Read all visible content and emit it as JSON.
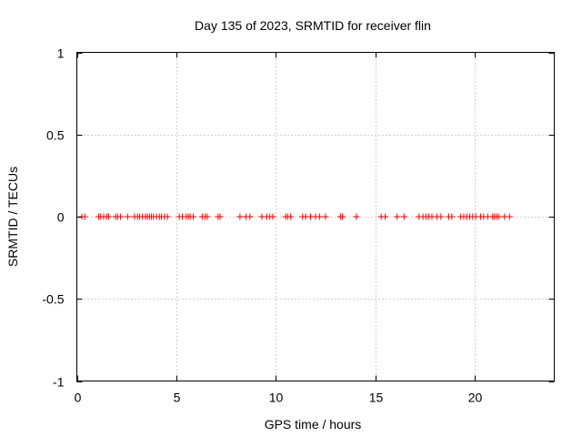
{
  "chart_data": {
    "type": "scatter",
    "title": "Day 135 of 2023, SRMTID for receiver flin",
    "xlabel": "GPS time / hours",
    "ylabel": "SRMTID / TECUs",
    "xlim": [
      0,
      24
    ],
    "ylim": [
      -1,
      1
    ],
    "xticks": [
      0,
      5,
      10,
      15,
      20
    ],
    "xtick_labels": [
      "0",
      "5",
      "10",
      "15",
      "20"
    ],
    "yticks": [
      1,
      0.5,
      0,
      -0.5,
      -1
    ],
    "ytick_labels": [
      "1",
      "0.5",
      "0",
      "-0.5",
      "-1"
    ],
    "grid": true,
    "series": [
      {
        "name": "SRMTID",
        "color": "#ff0000",
        "marker": "plus",
        "y_value": 0,
        "x": [
          0.25,
          0.4,
          1.1,
          1.2,
          1.35,
          1.5,
          1.6,
          1.95,
          2.05,
          2.2,
          2.55,
          2.9,
          3.05,
          3.15,
          3.3,
          3.45,
          3.55,
          3.65,
          3.75,
          3.85,
          4.0,
          4.15,
          4.25,
          4.4,
          4.55,
          5.15,
          5.3,
          5.5,
          5.6,
          5.7,
          5.85,
          6.3,
          6.45,
          6.55,
          7.1,
          7.2,
          8.2,
          8.5,
          8.7,
          9.3,
          9.55,
          9.7,
          9.85,
          10.5,
          10.6,
          10.75,
          11.35,
          11.5,
          11.75,
          12.0,
          12.2,
          12.5,
          13.25,
          13.35,
          14.05,
          15.3,
          15.5,
          16.1,
          16.45,
          17.2,
          17.4,
          17.55,
          17.7,
          17.85,
          18.1,
          18.3,
          18.7,
          18.85,
          19.3,
          19.45,
          19.6,
          19.75,
          19.9,
          20.05,
          20.3,
          20.45,
          20.65,
          20.9,
          21.0,
          21.1,
          21.2,
          21.5,
          21.75
        ]
      }
    ]
  }
}
